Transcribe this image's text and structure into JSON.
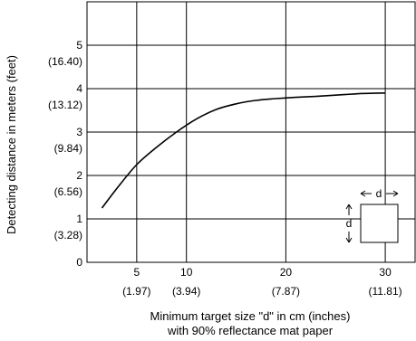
{
  "chart_data": {
    "type": "line",
    "title": "",
    "xlabel_line1": "Minimum target size \"d\" in cm (inches)",
    "xlabel_line2": "with 90% reflectance mat paper",
    "ylabel": "Detecting distance in meters (feet)",
    "xlim": [
      0,
      33
    ],
    "ylim": [
      0,
      6
    ],
    "grid": true,
    "x_ticks": [
      {
        "value": 5,
        "label": "5",
        "sublabel": "(1.97)"
      },
      {
        "value": 10,
        "label": "10",
        "sublabel": "(3.94)"
      },
      {
        "value": 20,
        "label": "20",
        "sublabel": "(7.87)"
      },
      {
        "value": 30,
        "label": "30",
        "sublabel": "(11.81)"
      }
    ],
    "y_ticks": [
      {
        "value": 0,
        "label": "0",
        "sublabel": ""
      },
      {
        "value": 1,
        "label": "1",
        "sublabel": "(3.28)"
      },
      {
        "value": 2,
        "label": "2",
        "sublabel": "(6.56)"
      },
      {
        "value": 3,
        "label": "3",
        "sublabel": "(9.84)"
      },
      {
        "value": 4,
        "label": "4",
        "sublabel": "(13.12)"
      },
      {
        "value": 5,
        "label": "5",
        "sublabel": "(16.40)"
      }
    ],
    "series": [
      {
        "x": [
          1.5,
          3,
          5,
          7,
          9,
          11,
          13,
          15,
          17,
          19,
          21,
          23,
          25,
          27,
          28,
          30
        ],
        "y": [
          1.25,
          1.7,
          2.25,
          2.65,
          3.0,
          3.3,
          3.52,
          3.65,
          3.73,
          3.77,
          3.8,
          3.82,
          3.85,
          3.88,
          3.89,
          3.9
        ]
      }
    ],
    "inset": {
      "label_d": "d"
    }
  }
}
